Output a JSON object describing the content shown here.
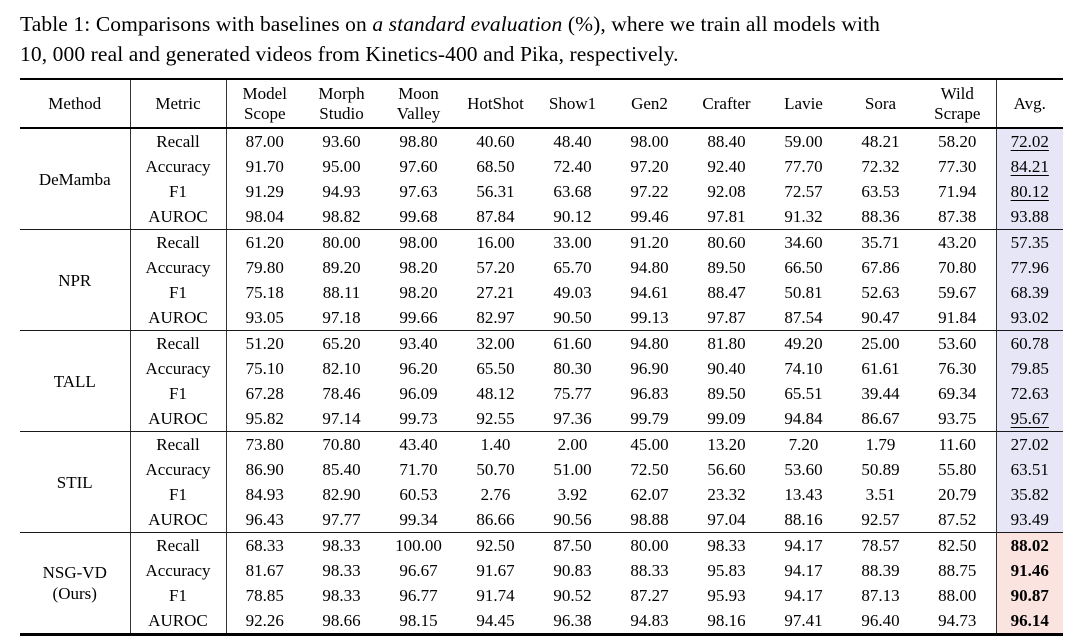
{
  "caption": {
    "part1": "Table 1: Comparisons with baselines on ",
    "italic": "a standard evaluation",
    "part2": " (%), where we train all models with",
    "part3": "10, 000 real and generated videos from Kinetics-400 and Pika, respectively."
  },
  "accent_colors": {
    "avg_baseline_bg": "#e6e6f6",
    "avg_ours_bg": "#fbe4e0"
  },
  "table": {
    "columns": [
      {
        "id": "method",
        "lines": [
          "Method"
        ]
      },
      {
        "id": "metric",
        "lines": [
          "Metric"
        ]
      },
      {
        "id": "model-scope",
        "lines": [
          "Model",
          "Scope"
        ]
      },
      {
        "id": "morph-studio",
        "lines": [
          "Morph",
          "Studio"
        ]
      },
      {
        "id": "moon-valley",
        "lines": [
          "Moon",
          "Valley"
        ]
      },
      {
        "id": "hotshot",
        "lines": [
          "HotShot"
        ]
      },
      {
        "id": "show1",
        "lines": [
          "Show1"
        ]
      },
      {
        "id": "gen2",
        "lines": [
          "Gen2"
        ]
      },
      {
        "id": "crafter",
        "lines": [
          "Crafter"
        ]
      },
      {
        "id": "lavie",
        "lines": [
          "Lavie"
        ]
      },
      {
        "id": "sora",
        "lines": [
          "Sora"
        ]
      },
      {
        "id": "wild-scrape",
        "lines": [
          "Wild",
          "Scrape"
        ]
      },
      {
        "id": "avg",
        "lines": [
          "Avg."
        ]
      }
    ],
    "groups": [
      {
        "method_id": "demamba",
        "method_lines": [
          "DeMamba"
        ],
        "avg_class": "avg-lav",
        "avg_bold": false,
        "rows": [
          {
            "metric": "Recall",
            "values": [
              "87.00",
              "93.60",
              "98.80",
              "40.60",
              "48.40",
              "98.00",
              "88.40",
              "59.00",
              "48.21",
              "58.20"
            ],
            "avg": "72.02",
            "avg_underline": true
          },
          {
            "metric": "Accuracy",
            "values": [
              "91.70",
              "95.00",
              "97.60",
              "68.50",
              "72.40",
              "97.20",
              "92.40",
              "77.70",
              "72.32",
              "77.30"
            ],
            "avg": "84.21",
            "avg_underline": true
          },
          {
            "metric": "F1",
            "values": [
              "91.29",
              "94.93",
              "97.63",
              "56.31",
              "63.68",
              "97.22",
              "92.08",
              "72.57",
              "63.53",
              "71.94"
            ],
            "avg": "80.12",
            "avg_underline": true
          },
          {
            "metric": "AUROC",
            "values": [
              "98.04",
              "98.82",
              "99.68",
              "87.84",
              "90.12",
              "99.46",
              "97.81",
              "91.32",
              "88.36",
              "87.38"
            ],
            "avg": "93.88",
            "avg_underline": false
          }
        ]
      },
      {
        "method_id": "npr",
        "method_lines": [
          "NPR"
        ],
        "avg_class": "avg-lav",
        "avg_bold": false,
        "rows": [
          {
            "metric": "Recall",
            "values": [
              "61.20",
              "80.00",
              "98.00",
              "16.00",
              "33.00",
              "91.20",
              "80.60",
              "34.60",
              "35.71",
              "43.20"
            ],
            "avg": "57.35",
            "avg_underline": false
          },
          {
            "metric": "Accuracy",
            "values": [
              "79.80",
              "89.20",
              "98.20",
              "57.20",
              "65.70",
              "94.80",
              "89.50",
              "66.50",
              "67.86",
              "70.80"
            ],
            "avg": "77.96",
            "avg_underline": false
          },
          {
            "metric": "F1",
            "values": [
              "75.18",
              "88.11",
              "98.20",
              "27.21",
              "49.03",
              "94.61",
              "88.47",
              "50.81",
              "52.63",
              "59.67"
            ],
            "avg": "68.39",
            "avg_underline": false
          },
          {
            "metric": "AUROC",
            "values": [
              "93.05",
              "97.18",
              "99.66",
              "82.97",
              "90.50",
              "99.13",
              "97.87",
              "87.54",
              "90.47",
              "91.84"
            ],
            "avg": "93.02",
            "avg_underline": false
          }
        ]
      },
      {
        "method_id": "tall",
        "method_lines": [
          "TALL"
        ],
        "avg_class": "avg-lav",
        "avg_bold": false,
        "rows": [
          {
            "metric": "Recall",
            "values": [
              "51.20",
              "65.20",
              "93.40",
              "32.00",
              "61.60",
              "94.80",
              "81.80",
              "49.20",
              "25.00",
              "53.60"
            ],
            "avg": "60.78",
            "avg_underline": false
          },
          {
            "metric": "Accuracy",
            "values": [
              "75.10",
              "82.10",
              "96.20",
              "65.50",
              "80.30",
              "96.90",
              "90.40",
              "74.10",
              "61.61",
              "76.30"
            ],
            "avg": "79.85",
            "avg_underline": false
          },
          {
            "metric": "F1",
            "values": [
              "67.28",
              "78.46",
              "96.09",
              "48.12",
              "75.77",
              "96.83",
              "89.50",
              "65.51",
              "39.44",
              "69.34"
            ],
            "avg": "72.63",
            "avg_underline": false
          },
          {
            "metric": "AUROC",
            "values": [
              "95.82",
              "97.14",
              "99.73",
              "92.55",
              "97.36",
              "99.79",
              "99.09",
              "94.84",
              "86.67",
              "93.75"
            ],
            "avg": "95.67",
            "avg_underline": true
          }
        ]
      },
      {
        "method_id": "stil",
        "method_lines": [
          "STIL"
        ],
        "avg_class": "avg-lav",
        "avg_bold": false,
        "rows": [
          {
            "metric": "Recall",
            "values": [
              "73.80",
              "70.80",
              "43.40",
              "1.40",
              "2.00",
              "45.00",
              "13.20",
              "7.20",
              "1.79",
              "11.60"
            ],
            "avg": "27.02",
            "avg_underline": false
          },
          {
            "metric": "Accuracy",
            "values": [
              "86.90",
              "85.40",
              "71.70",
              "50.70",
              "51.00",
              "72.50",
              "56.60",
              "53.60",
              "50.89",
              "55.80"
            ],
            "avg": "63.51",
            "avg_underline": false
          },
          {
            "metric": "F1",
            "values": [
              "84.93",
              "82.90",
              "60.53",
              "2.76",
              "3.92",
              "62.07",
              "23.32",
              "13.43",
              "3.51",
              "20.79"
            ],
            "avg": "35.82",
            "avg_underline": false
          },
          {
            "metric": "AUROC",
            "values": [
              "96.43",
              "97.77",
              "99.34",
              "86.66",
              "90.56",
              "98.88",
              "97.04",
              "88.16",
              "92.57",
              "87.52"
            ],
            "avg": "93.49",
            "avg_underline": false
          }
        ]
      },
      {
        "method_id": "nsg-vd",
        "method_lines": [
          "NSG-VD",
          "(Ours)"
        ],
        "avg_class": "avg-pink",
        "avg_bold": true,
        "rows": [
          {
            "metric": "Recall",
            "values": [
              "68.33",
              "98.33",
              "100.00",
              "92.50",
              "87.50",
              "80.00",
              "98.33",
              "94.17",
              "78.57",
              "82.50"
            ],
            "avg": "88.02",
            "avg_underline": false
          },
          {
            "metric": "Accuracy",
            "values": [
              "81.67",
              "98.33",
              "96.67",
              "91.67",
              "90.83",
              "88.33",
              "95.83",
              "94.17",
              "88.39",
              "88.75"
            ],
            "avg": "91.46",
            "avg_underline": false
          },
          {
            "metric": "F1",
            "values": [
              "78.85",
              "98.33",
              "96.77",
              "91.74",
              "90.52",
              "87.27",
              "95.93",
              "94.17",
              "87.13",
              "88.00"
            ],
            "avg": "90.87",
            "avg_underline": false
          },
          {
            "metric": "AUROC",
            "values": [
              "92.26",
              "98.66",
              "98.15",
              "94.45",
              "96.38",
              "94.83",
              "98.16",
              "97.41",
              "96.40",
              "94.73"
            ],
            "avg": "96.14",
            "avg_underline": false
          }
        ]
      }
    ]
  }
}
